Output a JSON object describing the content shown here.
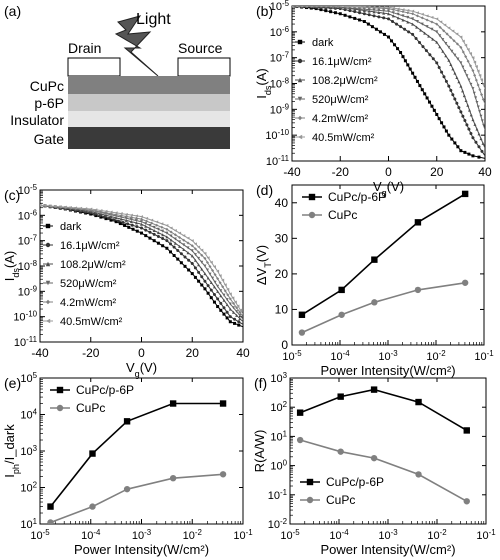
{
  "panel_a": {
    "letter": "(a)",
    "light": "Light",
    "drain": "Drain",
    "source": "Source",
    "layers": [
      "CuPc",
      "p-6P",
      "Insulator",
      "Gate"
    ]
  },
  "chart_data": [
    {
      "id": "b",
      "letter": "(b)",
      "type": "line",
      "ylabel": "I_ds(A)",
      "xlabel": "V_g(V)",
      "xlim": [
        -40,
        40
      ],
      "ylim_log10": [
        -11,
        -5
      ],
      "yscale": "log",
      "xticks": [
        -40,
        -20,
        0,
        20,
        40
      ],
      "yticks": [
        -5,
        -6,
        -7,
        -8,
        -9,
        -10,
        -11
      ],
      "legend": [
        "dark",
        "16.1μW/cm²",
        "108.2μW/cm²",
        "520μW/cm²",
        "4.2mW/cm²",
        "40.5mW/cm²"
      ],
      "legend_position": "left",
      "series": [
        {
          "name": "dark",
          "x": [
            -40,
            -30,
            -20,
            -10,
            0,
            5,
            10,
            15,
            20,
            25,
            30,
            35,
            40
          ],
          "y": [
            -5.0,
            -5.1,
            -5.3,
            -5.6,
            -6.2,
            -6.8,
            -7.6,
            -8.4,
            -9.2,
            -10.0,
            -10.6,
            -10.8,
            -10.9
          ]
        },
        {
          "name": "16.1μW/cm²",
          "x": [
            -40,
            -20,
            0,
            10,
            20,
            25,
            30,
            35,
            40
          ],
          "y": [
            -5.0,
            -5.1,
            -5.5,
            -6.1,
            -7.2,
            -8.1,
            -9.1,
            -10.1,
            -10.8
          ]
        },
        {
          "name": "108.2μW/cm²",
          "x": [
            -40,
            -20,
            0,
            10,
            20,
            25,
            30,
            35,
            40
          ],
          "y": [
            -5.0,
            -5.05,
            -5.3,
            -5.7,
            -6.4,
            -7.1,
            -8.1,
            -9.4,
            -10.5
          ]
        },
        {
          "name": "520μW/cm²",
          "x": [
            -40,
            -20,
            0,
            10,
            20,
            30,
            35,
            40
          ],
          "y": [
            -5.0,
            -5.05,
            -5.2,
            -5.5,
            -6.0,
            -7.2,
            -8.2,
            -9.8
          ]
        },
        {
          "name": "4.2mW/cm²",
          "x": [
            -40,
            -20,
            0,
            10,
            20,
            30,
            35,
            40
          ],
          "y": [
            -5.0,
            -5.0,
            -5.1,
            -5.3,
            -5.7,
            -6.6,
            -7.5,
            -8.8
          ]
        },
        {
          "name": "40.5mW/cm²",
          "x": [
            -40,
            -20,
            0,
            10,
            20,
            30,
            35,
            40
          ],
          "y": [
            -5.0,
            -5.0,
            -5.05,
            -5.2,
            -5.5,
            -6.2,
            -7.0,
            -8.2
          ]
        }
      ]
    },
    {
      "id": "c",
      "letter": "(c)",
      "type": "line",
      "ylabel": "I_ds(A)",
      "xlabel": "V_g(V)",
      "xlim": [
        -40,
        40
      ],
      "ylim_log10": [
        -11,
        -5
      ],
      "yscale": "log",
      "xticks": [
        -40,
        -20,
        0,
        20,
        40
      ],
      "yticks": [
        -5,
        -6,
        -7,
        -8,
        -9,
        -10,
        -11
      ],
      "legend": [
        "dark",
        "16.1μW/cm²",
        "108.2μW/cm²",
        "520μW/cm²",
        "4.2mW/cm²",
        "40.5mW/cm²"
      ],
      "legend_position": "left",
      "series": [
        {
          "name": "dark",
          "x": [
            -40,
            -30,
            -20,
            -10,
            0,
            10,
            20,
            25,
            30,
            35,
            40
          ],
          "y": [
            -5.6,
            -5.75,
            -5.95,
            -6.25,
            -6.7,
            -7.3,
            -8.3,
            -8.9,
            -9.6,
            -10.2,
            -10.4
          ]
        },
        {
          "name": "16.1μW/cm²",
          "x": [
            -40,
            -20,
            0,
            10,
            20,
            25,
            30,
            35,
            40
          ],
          "y": [
            -5.6,
            -5.9,
            -6.5,
            -7.0,
            -7.9,
            -8.6,
            -9.3,
            -10.0,
            -10.3
          ]
        },
        {
          "name": "108.2μW/cm²",
          "x": [
            -40,
            -20,
            0,
            10,
            20,
            25,
            30,
            35,
            40
          ],
          "y": [
            -5.6,
            -5.85,
            -6.35,
            -6.85,
            -7.6,
            -8.3,
            -9.0,
            -9.7,
            -10.2
          ]
        },
        {
          "name": "520μW/cm²",
          "x": [
            -40,
            -20,
            0,
            10,
            20,
            25,
            30,
            35,
            40
          ],
          "y": [
            -5.6,
            -5.8,
            -6.25,
            -6.7,
            -7.4,
            -8.0,
            -8.8,
            -9.5,
            -10.1
          ]
        },
        {
          "name": "4.2mW/cm²",
          "x": [
            -40,
            -20,
            0,
            10,
            20,
            25,
            30,
            35,
            40
          ],
          "y": [
            -5.6,
            -5.8,
            -6.15,
            -6.55,
            -7.2,
            -7.7,
            -8.5,
            -9.3,
            -10.0
          ]
        },
        {
          "name": "40.5mW/cm²",
          "x": [
            -40,
            -20,
            0,
            10,
            20,
            25,
            30,
            35,
            40
          ],
          "y": [
            -5.6,
            -5.75,
            -6.05,
            -6.4,
            -7.0,
            -7.5,
            -8.2,
            -9.1,
            -9.9
          ]
        }
      ]
    },
    {
      "id": "d",
      "letter": "(d)",
      "type": "line",
      "ylabel": "ΔV_T(V)",
      "xlabel": "Power Intensity(W/cm²)",
      "xscale": "log",
      "xlim_log10": [
        -5,
        -1
      ],
      "ylim": [
        0,
        45
      ],
      "xticks": [
        -5,
        -4,
        -3,
        -2,
        -1
      ],
      "yticks": [
        0,
        10,
        20,
        30,
        40
      ],
      "legend_position": "top-left",
      "series": [
        {
          "name": "CuPc/p-6P",
          "marker": "square",
          "color": "#000000",
          "x": [
            1.61e-05,
            0.0001082,
            0.00052,
            0.0042,
            0.0405
          ],
          "y": [
            8.5,
            15.5,
            24.0,
            34.5,
            42.5
          ]
        },
        {
          "name": "CuPc",
          "marker": "circle",
          "color": "#808080",
          "x": [
            1.61e-05,
            0.0001082,
            0.00052,
            0.0042,
            0.0405
          ],
          "y": [
            3.5,
            8.5,
            12.0,
            15.5,
            17.5
          ]
        }
      ]
    },
    {
      "id": "e",
      "letter": "(e)",
      "type": "line",
      "ylabel": "I_ph/I_dark",
      "xlabel": "Power Intensity(W/cm²)",
      "xscale": "log",
      "yscale": "log",
      "xlim_log10": [
        -5,
        -1
      ],
      "ylim_log10": [
        1,
        5
      ],
      "xticks": [
        -5,
        -4,
        -3,
        -2,
        -1
      ],
      "yticks": [
        1,
        2,
        3,
        4,
        5
      ],
      "legend_position": "top-left",
      "series": [
        {
          "name": "CuPc/p-6P",
          "marker": "square",
          "color": "#000000",
          "x": [
            1.61e-05,
            0.0001082,
            0.00052,
            0.0042,
            0.0405
          ],
          "y": [
            30,
            850,
            6500,
            20000,
            20000
          ]
        },
        {
          "name": "CuPc",
          "marker": "circle",
          "color": "#808080",
          "x": [
            1.61e-05,
            0.0001082,
            0.00052,
            0.0042,
            0.0405
          ],
          "y": [
            11,
            30,
            90,
            180,
            230
          ]
        }
      ]
    },
    {
      "id": "f",
      "letter": "(f)",
      "type": "line",
      "ylabel": "R(A/W)",
      "xlabel": "Power Intensity(W/cm²)",
      "xscale": "log",
      "yscale": "log",
      "xlim_log10": [
        -5,
        -1
      ],
      "ylim_log10": [
        -2,
        3
      ],
      "xticks": [
        -5,
        -4,
        -3,
        -2,
        -1
      ],
      "yticks": [
        3,
        2,
        1,
        0,
        -1,
        -2
      ],
      "legend_position": "bottom-left",
      "series": [
        {
          "name": "CuPc/p-6P",
          "marker": "square",
          "color": "#000000",
          "x": [
            1.61e-05,
            0.0001082,
            0.00052,
            0.0042,
            0.0405
          ],
          "y": [
            65,
            230,
            400,
            150,
            16
          ]
        },
        {
          "name": "CuPc",
          "marker": "circle",
          "color": "#808080",
          "x": [
            1.61e-05,
            0.0001082,
            0.00052,
            0.0042,
            0.0405
          ],
          "y": [
            7.5,
            3.0,
            1.8,
            0.5,
            0.06
          ]
        }
      ]
    }
  ]
}
